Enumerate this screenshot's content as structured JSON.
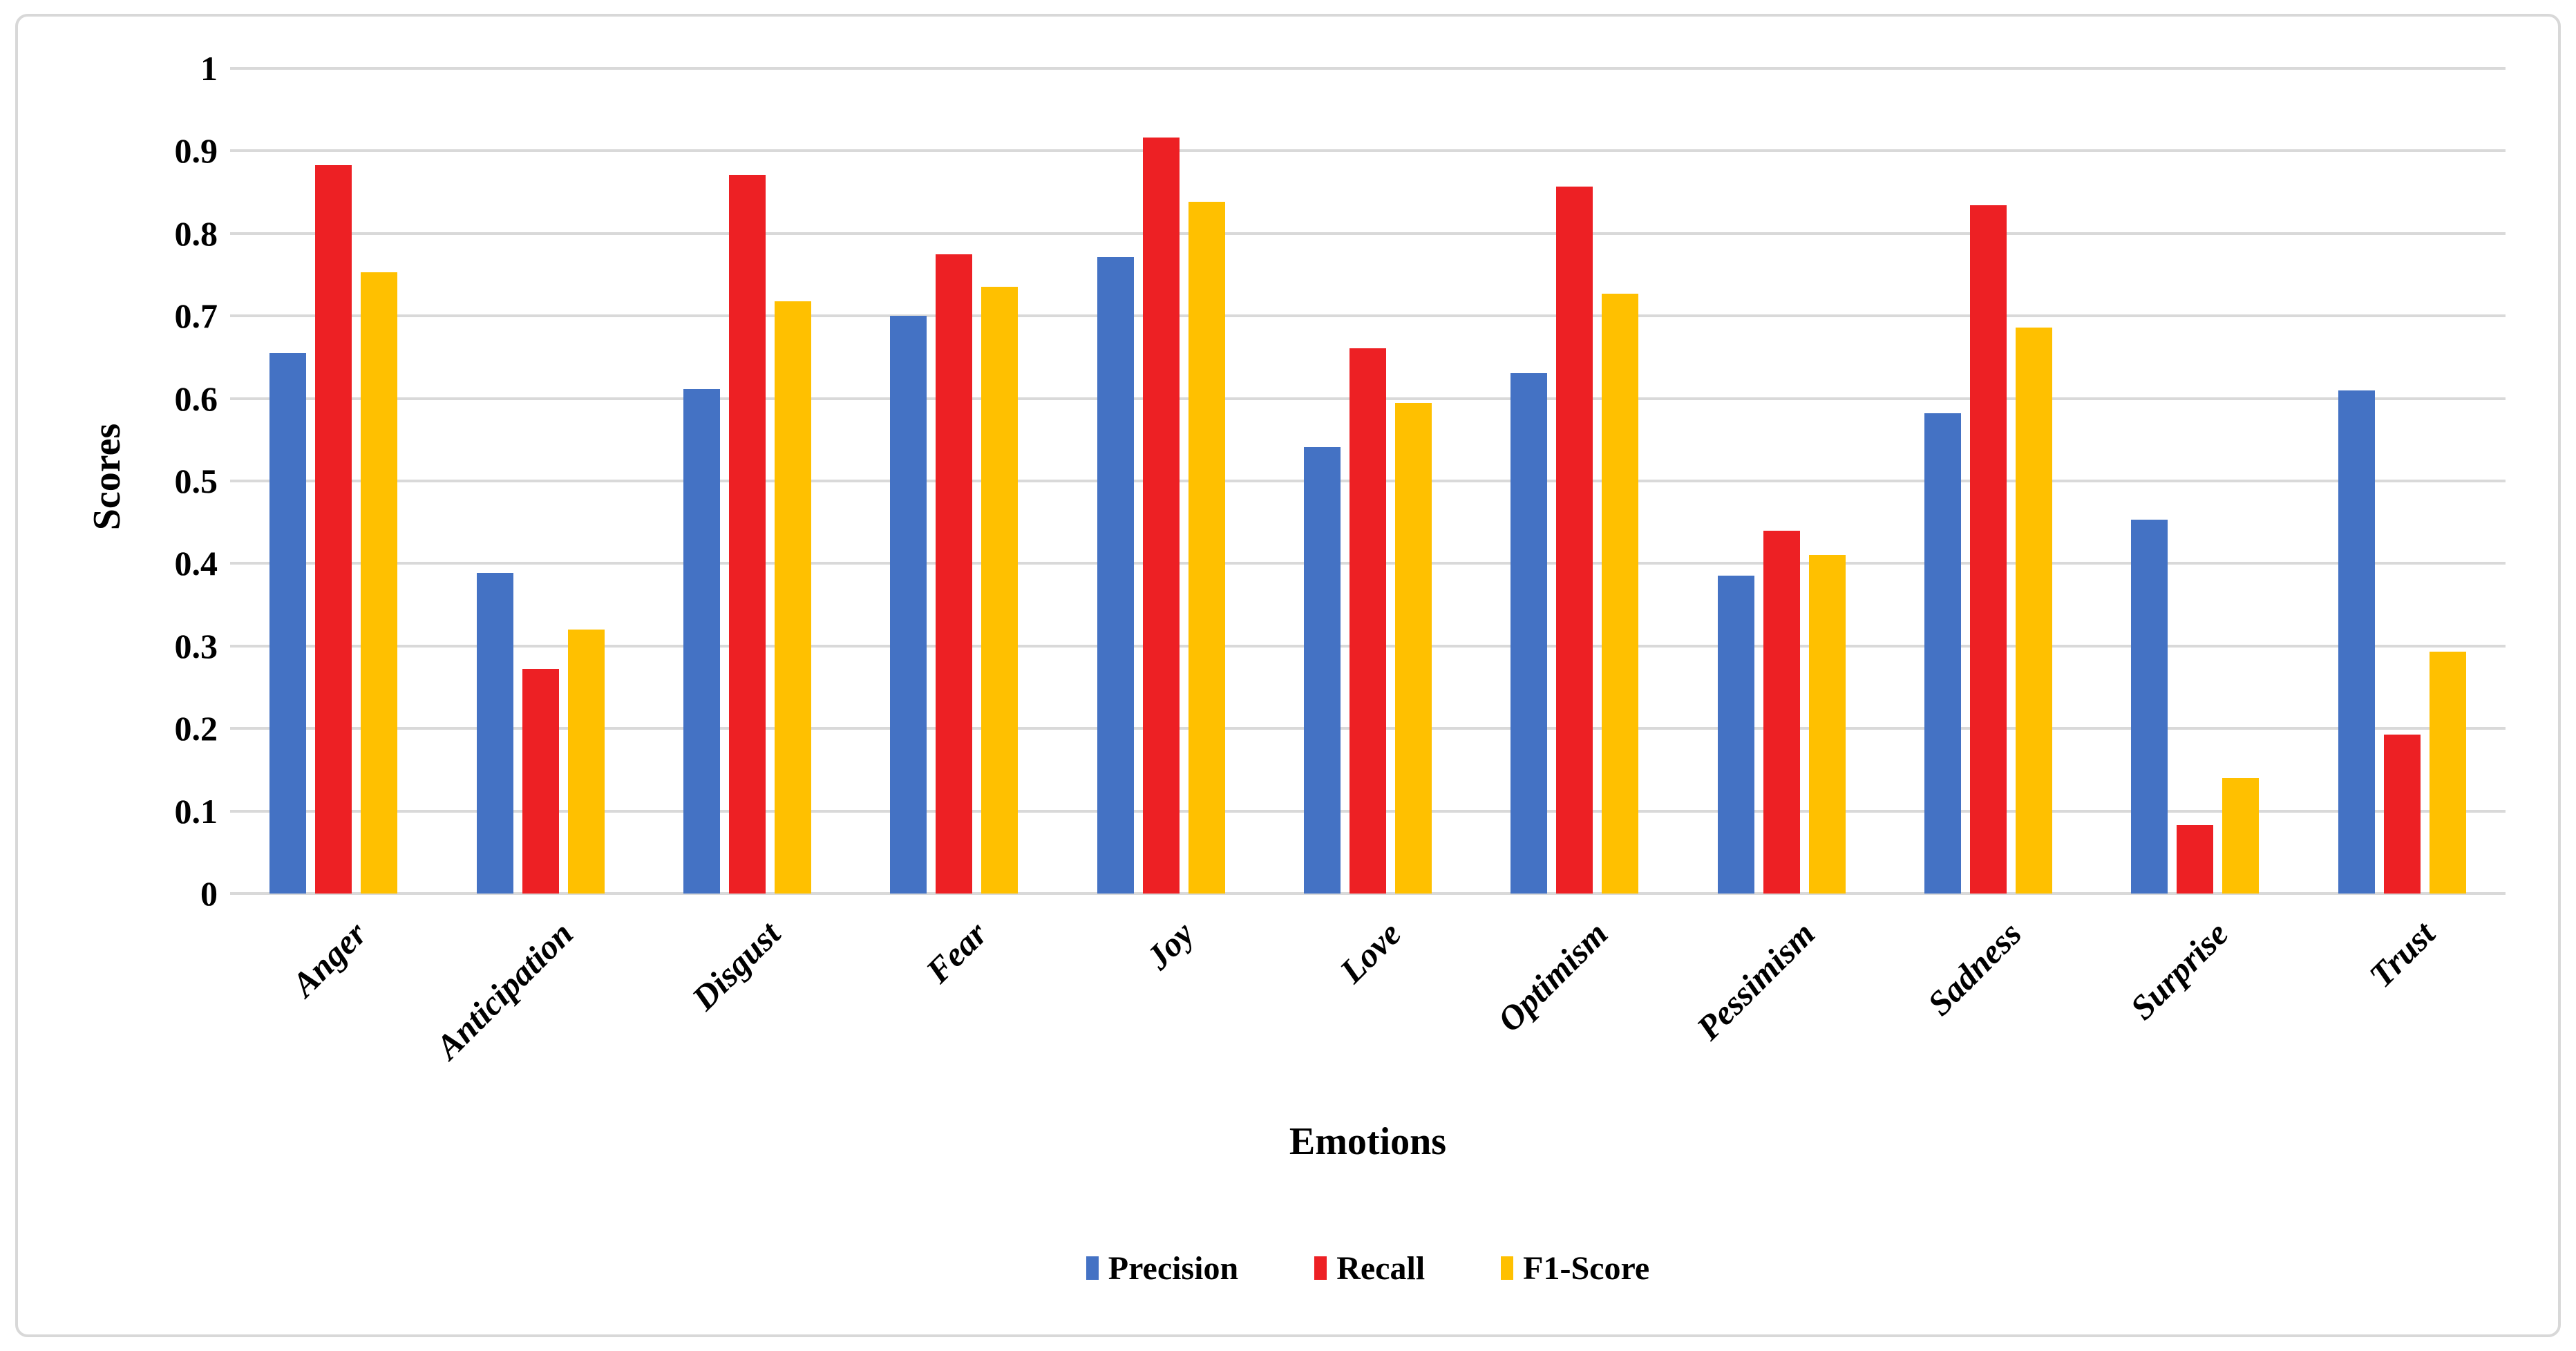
{
  "figure": {
    "background": "#FFFFFF",
    "border_color": "#D8D8D8"
  },
  "chart_data": {
    "type": "bar",
    "title": "",
    "xlabel": "Emotions",
    "ylabel": "Scores",
    "categories": [
      "Anger",
      "Anticipation",
      "Disgust",
      "Fear",
      "Joy",
      "Love",
      "Optimism",
      "Pessimism",
      "Sadness",
      "Surprise",
      "Trust"
    ],
    "series": [
      {
        "name": "Precision",
        "color": "#4472C4",
        "values": [
          0.655,
          0.389,
          0.611,
          0.7,
          0.771,
          0.541,
          0.631,
          0.385,
          0.582,
          0.453,
          0.61
        ]
      },
      {
        "name": "Recall",
        "color": "#ED2024",
        "values": [
          0.883,
          0.272,
          0.871,
          0.775,
          0.916,
          0.661,
          0.857,
          0.44,
          0.834,
          0.083,
          0.193
        ]
      },
      {
        "name": "F1-Score",
        "color": "#FFC000",
        "values": [
          0.753,
          0.32,
          0.718,
          0.735,
          0.838,
          0.595,
          0.727,
          0.41,
          0.686,
          0.14,
          0.293
        ]
      }
    ],
    "ylim": [
      0,
      1
    ],
    "ytick_step": 0.1,
    "ytick_labels": [
      "0",
      "0.1",
      "0.2",
      "0.3",
      "0.4",
      "0.5",
      "0.6",
      "0.7",
      "0.8",
      "0.9",
      "1"
    ],
    "grid": true,
    "gridline_color": "#D9D9D9",
    "legend_position": "bottom",
    "legend_entries": [
      "Precision",
      "Recall",
      "F1-Score"
    ]
  }
}
